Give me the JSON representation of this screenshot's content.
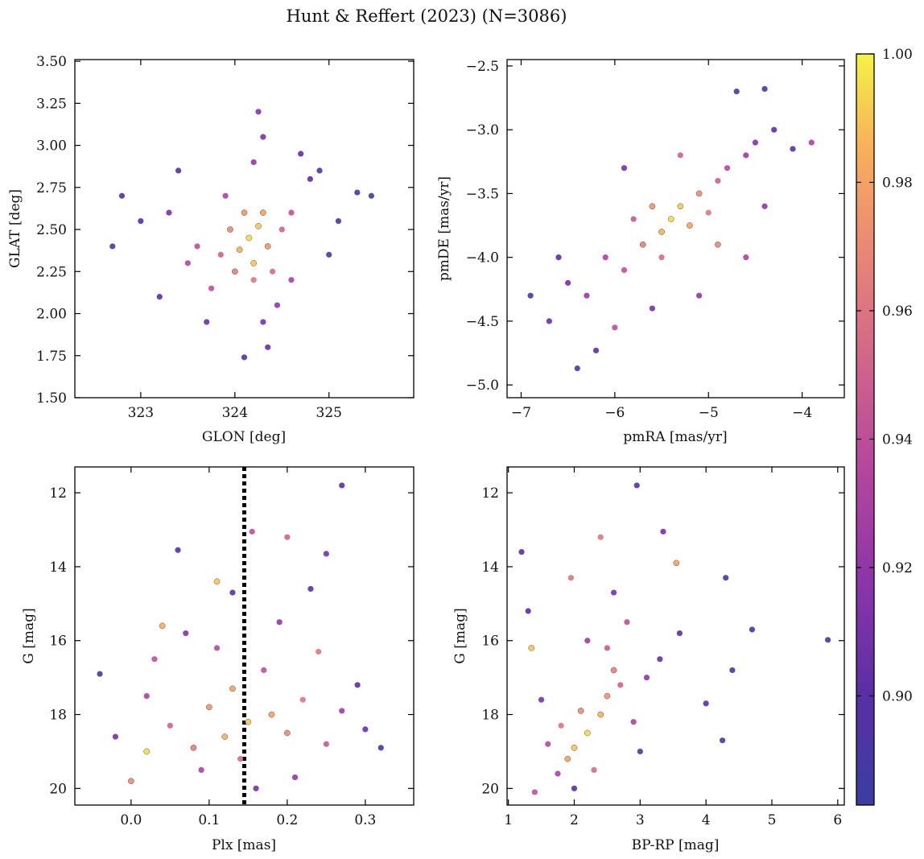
{
  "figure": {
    "title": "Hunt & Reffert (2023) (N=3086)"
  },
  "colorbar": {
    "colormap": "plasma",
    "min": 0.883,
    "max": 1.0,
    "ticks": [
      0.9,
      0.92,
      0.94,
      0.96,
      0.98,
      1.0
    ],
    "tick_labels": [
      "0.90",
      "0.92",
      "0.94",
      "0.96",
      "0.98",
      "1.00"
    ]
  },
  "colors": {
    "edge": "#555555",
    "vline": "#000000"
  },
  "chart_data": [
    {
      "type": "scatter",
      "panel": "top-left",
      "xlabel": "GLON [deg]",
      "ylabel": "GLAT [deg]",
      "xlim": [
        322.3,
        325.9
      ],
      "ylim": [
        1.5,
        3.51
      ],
      "x_ticks": [
        323,
        324,
        325
      ],
      "x_tick_labels": [
        "323",
        "324",
        "325"
      ],
      "y_ticks": [
        1.5,
        1.75,
        2.0,
        2.25,
        2.5,
        2.75,
        3.0,
        3.25,
        3.5
      ],
      "y_tick_labels": [
        "1.50",
        "1.75",
        "2.00",
        "2.25",
        "2.50",
        "2.75",
        "3.00",
        "3.25",
        "3.50"
      ],
      "points": [
        {
          "x": 324.15,
          "y": 2.45,
          "c": 0.995
        },
        {
          "x": 324.25,
          "y": 2.52,
          "c": 0.99
        },
        {
          "x": 324.05,
          "y": 2.38,
          "c": 0.985
        },
        {
          "x": 324.2,
          "y": 2.3,
          "c": 0.99
        },
        {
          "x": 324.3,
          "y": 2.6,
          "c": 0.98
        },
        {
          "x": 324.1,
          "y": 2.6,
          "c": 0.975
        },
        {
          "x": 323.95,
          "y": 2.5,
          "c": 0.97
        },
        {
          "x": 324.35,
          "y": 2.4,
          "c": 0.975
        },
        {
          "x": 324.2,
          "y": 2.2,
          "c": 0.96
        },
        {
          "x": 324.0,
          "y": 2.25,
          "c": 0.965
        },
        {
          "x": 324.4,
          "y": 2.25,
          "c": 0.955
        },
        {
          "x": 323.85,
          "y": 2.35,
          "c": 0.95
        },
        {
          "x": 324.5,
          "y": 2.5,
          "c": 0.95
        },
        {
          "x": 323.6,
          "y": 2.4,
          "c": 0.94
        },
        {
          "x": 323.5,
          "y": 2.3,
          "c": 0.935
        },
        {
          "x": 324.6,
          "y": 2.2,
          "c": 0.93
        },
        {
          "x": 324.2,
          "y": 2.9,
          "c": 0.92
        },
        {
          "x": 324.3,
          "y": 3.05,
          "c": 0.91
        },
        {
          "x": 324.25,
          "y": 3.2,
          "c": 0.915
        },
        {
          "x": 324.8,
          "y": 2.8,
          "c": 0.9
        },
        {
          "x": 324.9,
          "y": 2.85,
          "c": 0.89
        },
        {
          "x": 323.3,
          "y": 2.6,
          "c": 0.91
        },
        {
          "x": 323.0,
          "y": 2.55,
          "c": 0.9
        },
        {
          "x": 322.8,
          "y": 2.7,
          "c": 0.895
        },
        {
          "x": 322.7,
          "y": 2.4,
          "c": 0.89
        },
        {
          "x": 323.2,
          "y": 2.1,
          "c": 0.9
        },
        {
          "x": 323.7,
          "y": 1.95,
          "c": 0.905
        },
        {
          "x": 324.3,
          "y": 1.95,
          "c": 0.91
        },
        {
          "x": 324.1,
          "y": 1.74,
          "c": 0.9
        },
        {
          "x": 324.35,
          "y": 1.8,
          "c": 0.905
        },
        {
          "x": 325.3,
          "y": 2.72,
          "c": 0.89
        },
        {
          "x": 325.45,
          "y": 2.7,
          "c": 0.885
        },
        {
          "x": 325.1,
          "y": 2.55,
          "c": 0.895
        },
        {
          "x": 325.0,
          "y": 2.35,
          "c": 0.89
        },
        {
          "x": 323.4,
          "y": 2.85,
          "c": 0.9
        },
        {
          "x": 324.6,
          "y": 2.6,
          "c": 0.94
        },
        {
          "x": 323.75,
          "y": 2.15,
          "c": 0.94
        },
        {
          "x": 324.45,
          "y": 2.05,
          "c": 0.92
        },
        {
          "x": 323.9,
          "y": 2.7,
          "c": 0.93
        },
        {
          "x": 324.7,
          "y": 2.95,
          "c": 0.9
        }
      ]
    },
    {
      "type": "scatter",
      "panel": "top-right",
      "xlabel": "pmRA [mas/yr]",
      "ylabel": "pmDE [mas/yr]",
      "xlim": [
        -7.15,
        -3.55
      ],
      "ylim": [
        -5.1,
        -2.45
      ],
      "x_ticks": [
        -7,
        -6,
        -5,
        -4
      ],
      "x_tick_labels": [
        "−7",
        "−6",
        "−5",
        "−4"
      ],
      "y_ticks": [
        -5.0,
        -4.5,
        -4.0,
        -3.5,
        -3.0,
        -2.5
      ],
      "y_tick_labels": [
        "−5.0",
        "−4.5",
        "−4.0",
        "−3.5",
        "−3.0",
        "−2.5"
      ],
      "points": [
        {
          "x": -5.4,
          "y": -3.7,
          "c": 0.995
        },
        {
          "x": -5.3,
          "y": -3.6,
          "c": 0.99
        },
        {
          "x": -5.5,
          "y": -3.8,
          "c": 0.985
        },
        {
          "x": -5.2,
          "y": -3.75,
          "c": 0.98
        },
        {
          "x": -5.6,
          "y": -3.6,
          "c": 0.975
        },
        {
          "x": -5.1,
          "y": -3.5,
          "c": 0.97
        },
        {
          "x": -5.7,
          "y": -3.9,
          "c": 0.965
        },
        {
          "x": -5.0,
          "y": -3.65,
          "c": 0.96
        },
        {
          "x": -5.5,
          "y": -4.0,
          "c": 0.955
        },
        {
          "x": -4.9,
          "y": -3.4,
          "c": 0.95
        },
        {
          "x": -5.8,
          "y": -3.7,
          "c": 0.945
        },
        {
          "x": -5.9,
          "y": -4.1,
          "c": 0.94
        },
        {
          "x": -4.8,
          "y": -3.3,
          "c": 0.935
        },
        {
          "x": -6.1,
          "y": -4.0,
          "c": 0.93
        },
        {
          "x": -4.6,
          "y": -3.2,
          "c": 0.925
        },
        {
          "x": -6.3,
          "y": -4.3,
          "c": 0.92
        },
        {
          "x": -4.5,
          "y": -3.1,
          "c": 0.915
        },
        {
          "x": -6.5,
          "y": -4.2,
          "c": 0.91
        },
        {
          "x": -4.3,
          "y": -3.0,
          "c": 0.9
        },
        {
          "x": -6.7,
          "y": -4.5,
          "c": 0.905
        },
        {
          "x": -4.1,
          "y": -3.15,
          "c": 0.9
        },
        {
          "x": -6.9,
          "y": -4.3,
          "c": 0.89
        },
        {
          "x": -6.4,
          "y": -4.87,
          "c": 0.89
        },
        {
          "x": -4.4,
          "y": -2.68,
          "c": 0.885
        },
        {
          "x": -4.7,
          "y": -2.7,
          "c": 0.89
        },
        {
          "x": -3.9,
          "y": -3.1,
          "c": 0.93
        },
        {
          "x": -6.2,
          "y": -4.73,
          "c": 0.9
        },
        {
          "x": -5.1,
          "y": -4.3,
          "c": 0.92
        },
        {
          "x": -5.9,
          "y": -3.3,
          "c": 0.91
        },
        {
          "x": -4.6,
          "y": -4.0,
          "c": 0.93
        },
        {
          "x": -6.0,
          "y": -4.55,
          "c": 0.94
        },
        {
          "x": -4.9,
          "y": -3.9,
          "c": 0.97
        },
        {
          "x": -5.3,
          "y": -3.2,
          "c": 0.95
        },
        {
          "x": -6.6,
          "y": -4.0,
          "c": 0.9
        },
        {
          "x": -5.6,
          "y": -4.4,
          "c": 0.91
        },
        {
          "x": -4.4,
          "y": -3.6,
          "c": 0.92
        }
      ]
    },
    {
      "type": "scatter",
      "panel": "bottom-left",
      "xlabel": "Plx [mas]",
      "ylabel": "G [mag]",
      "xlim": [
        -0.072,
        0.362
      ],
      "ylim": [
        20.45,
        11.3
      ],
      "y_inverted": true,
      "vline_x": 0.145,
      "x_ticks": [
        0.0,
        0.1,
        0.2,
        0.3
      ],
      "x_tick_labels": [
        "0.0",
        "0.1",
        "0.2",
        "0.3"
      ],
      "y_ticks": [
        12,
        14,
        16,
        18,
        20
      ],
      "y_tick_labels": [
        "12",
        "14",
        "16",
        "18",
        "20"
      ],
      "points": [
        {
          "x": 0.15,
          "y": 18.2,
          "c": 0.99
        },
        {
          "x": 0.12,
          "y": 18.6,
          "c": 0.985
        },
        {
          "x": 0.18,
          "y": 18.0,
          "c": 0.98
        },
        {
          "x": 0.1,
          "y": 17.8,
          "c": 0.975
        },
        {
          "x": 0.2,
          "y": 18.5,
          "c": 0.97
        },
        {
          "x": 0.08,
          "y": 18.9,
          "c": 0.965
        },
        {
          "x": 0.22,
          "y": 17.6,
          "c": 0.96
        },
        {
          "x": 0.14,
          "y": 19.2,
          "c": 0.955
        },
        {
          "x": 0.05,
          "y": 18.3,
          "c": 0.95
        },
        {
          "x": 0.25,
          "y": 18.8,
          "c": 0.945
        },
        {
          "x": 0.17,
          "y": 16.8,
          "c": 0.94
        },
        {
          "x": 0.11,
          "y": 16.2,
          "c": 0.935
        },
        {
          "x": 0.02,
          "y": 17.5,
          "c": 0.93
        },
        {
          "x": 0.27,
          "y": 17.9,
          "c": 0.925
        },
        {
          "x": 0.19,
          "y": 15.5,
          "c": 0.92
        },
        {
          "x": 0.07,
          "y": 15.8,
          "c": 0.915
        },
        {
          "x": -0.02,
          "y": 18.6,
          "c": 0.91
        },
        {
          "x": 0.3,
          "y": 18.4,
          "c": 0.905
        },
        {
          "x": 0.13,
          "y": 14.7,
          "c": 0.9
        },
        {
          "x": 0.23,
          "y": 14.6,
          "c": 0.9
        },
        {
          "x": -0.04,
          "y": 16.9,
          "c": 0.89
        },
        {
          "x": 0.32,
          "y": 18.9,
          "c": 0.89
        },
        {
          "x": 0.27,
          "y": 11.8,
          "c": 0.9
        },
        {
          "x": 0.2,
          "y": 13.2,
          "c": 0.95
        },
        {
          "x": 0.155,
          "y": 13.05,
          "c": 0.94
        },
        {
          "x": 0.06,
          "y": 13.55,
          "c": 0.9
        },
        {
          "x": 0.25,
          "y": 13.65,
          "c": 0.91
        },
        {
          "x": 0.11,
          "y": 14.4,
          "c": 0.99
        },
        {
          "x": 0.04,
          "y": 15.6,
          "c": 0.985
        },
        {
          "x": 0.0,
          "y": 19.8,
          "c": 0.97
        },
        {
          "x": 0.09,
          "y": 19.5,
          "c": 0.93
        },
        {
          "x": 0.21,
          "y": 19.7,
          "c": 0.92
        },
        {
          "x": 0.16,
          "y": 20.0,
          "c": 0.91
        },
        {
          "x": 0.29,
          "y": 17.2,
          "c": 0.9
        },
        {
          "x": 0.03,
          "y": 16.5,
          "c": 0.94
        },
        {
          "x": 0.24,
          "y": 16.3,
          "c": 0.96
        },
        {
          "x": 0.13,
          "y": 17.3,
          "c": 0.98
        },
        {
          "x": 0.02,
          "y": 19.0,
          "c": 0.995
        }
      ]
    },
    {
      "type": "scatter",
      "panel": "bottom-right",
      "xlabel": "BP-RP [mag]",
      "ylabel": "G [mag]",
      "xlim": [
        0.98,
        6.1
      ],
      "ylim": [
        20.45,
        11.3
      ],
      "y_inverted": true,
      "x_ticks": [
        1,
        2,
        3,
        4,
        5,
        6
      ],
      "x_tick_labels": [
        "1",
        "2",
        "3",
        "4",
        "5",
        "6"
      ],
      "y_ticks": [
        12,
        14,
        16,
        18,
        20
      ],
      "y_tick_labels": [
        "12",
        "14",
        "16",
        "18",
        "20"
      ],
      "points": [
        {
          "x": 2.2,
          "y": 18.5,
          "c": 0.995
        },
        {
          "x": 2.0,
          "y": 18.9,
          "c": 0.99
        },
        {
          "x": 2.4,
          "y": 18.0,
          "c": 0.985
        },
        {
          "x": 1.9,
          "y": 19.2,
          "c": 0.98
        },
        {
          "x": 2.5,
          "y": 17.5,
          "c": 0.975
        },
        {
          "x": 2.1,
          "y": 17.9,
          "c": 0.97
        },
        {
          "x": 2.6,
          "y": 16.8,
          "c": 0.965
        },
        {
          "x": 1.8,
          "y": 18.3,
          "c": 0.96
        },
        {
          "x": 2.3,
          "y": 19.5,
          "c": 0.955
        },
        {
          "x": 2.7,
          "y": 17.2,
          "c": 0.95
        },
        {
          "x": 2.5,
          "y": 16.2,
          "c": 0.945
        },
        {
          "x": 2.8,
          "y": 15.5,
          "c": 0.94
        },
        {
          "x": 1.6,
          "y": 18.8,
          "c": 0.935
        },
        {
          "x": 2.9,
          "y": 18.2,
          "c": 0.93
        },
        {
          "x": 3.1,
          "y": 17.0,
          "c": 0.92
        },
        {
          "x": 2.2,
          "y": 16.0,
          "c": 0.925
        },
        {
          "x": 1.5,
          "y": 17.6,
          "c": 0.91
        },
        {
          "x": 3.3,
          "y": 16.5,
          "c": 0.905
        },
        {
          "x": 3.0,
          "y": 19.0,
          "c": 0.9
        },
        {
          "x": 2.0,
          "y": 20.0,
          "c": 0.9
        },
        {
          "x": 2.6,
          "y": 14.7,
          "c": 0.91
        },
        {
          "x": 3.6,
          "y": 15.8,
          "c": 0.9
        },
        {
          "x": 4.0,
          "y": 17.7,
          "c": 0.9
        },
        {
          "x": 4.3,
          "y": 14.3,
          "c": 0.89
        },
        {
          "x": 4.4,
          "y": 16.8,
          "c": 0.89
        },
        {
          "x": 4.7,
          "y": 15.7,
          "c": 0.885
        },
        {
          "x": 5.85,
          "y": 15.98,
          "c": 0.885
        },
        {
          "x": 4.25,
          "y": 18.7,
          "c": 0.89
        },
        {
          "x": 2.95,
          "y": 11.8,
          "c": 0.9
        },
        {
          "x": 2.4,
          "y": 13.2,
          "c": 0.96
        },
        {
          "x": 3.35,
          "y": 13.05,
          "c": 0.91
        },
        {
          "x": 1.2,
          "y": 13.6,
          "c": 0.9
        },
        {
          "x": 1.3,
          "y": 15.2,
          "c": 0.9
        },
        {
          "x": 1.35,
          "y": 16.2,
          "c": 0.99
        },
        {
          "x": 1.4,
          "y": 20.1,
          "c": 0.94
        },
        {
          "x": 1.95,
          "y": 14.3,
          "c": 0.96
        },
        {
          "x": 3.55,
          "y": 13.9,
          "c": 0.98
        },
        {
          "x": 1.75,
          "y": 19.6,
          "c": 0.93
        }
      ]
    }
  ]
}
